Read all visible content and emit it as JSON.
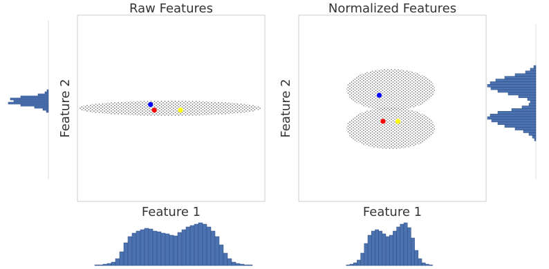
{
  "chart_data": [
    {
      "type": "scatter",
      "title": "Raw Features",
      "xlabel": "Feature 1",
      "ylabel": "Feature 2",
      "points": [
        {
          "color": "#0000ff",
          "x": 0.39,
          "y": 0.52
        },
        {
          "color": "#ff0000",
          "x": 0.41,
          "y": 0.49
        },
        {
          "color": "#ffff00",
          "x": 0.55,
          "y": 0.49
        }
      ]
    },
    {
      "type": "scatter",
      "title": "Normalized Features",
      "xlabel": "Feature 1",
      "ylabel": "Feature 2",
      "points": [
        {
          "color": "#0000ff",
          "x": 0.43,
          "y": 0.57
        },
        {
          "color": "#ff0000",
          "x": 0.45,
          "y": 0.43
        },
        {
          "color": "#ffff00",
          "x": 0.53,
          "y": 0.43
        }
      ]
    },
    {
      "type": "histogram",
      "orientation": "vertical",
      "color": "#4c72b0",
      "values": [
        0,
        0,
        1,
        1,
        2,
        3,
        5,
        10,
        20,
        33,
        42,
        47,
        50,
        52,
        54,
        53,
        50,
        49,
        47,
        46,
        44,
        43,
        48,
        52,
        56,
        58,
        60,
        62,
        60,
        56,
        50,
        42,
        30,
        18,
        10,
        5,
        3,
        2,
        1,
        1,
        0,
        0
      ]
    },
    {
      "type": "histogram",
      "orientation": "vertical",
      "color": "#4c72b0",
      "values": [
        0,
        0,
        0,
        0,
        0,
        0,
        0,
        0,
        0,
        0,
        0,
        0,
        0,
        0,
        1,
        2,
        4,
        8,
        18,
        32,
        44,
        50,
        52,
        50,
        46,
        42,
        44,
        50,
        56,
        60,
        62,
        55,
        40,
        22,
        10,
        4,
        2,
        1,
        0,
        0,
        0,
        0
      ]
    },
    {
      "type": "histogram",
      "orientation": "horizontal",
      "color": "#4c72b0",
      "values": [
        2,
        5,
        15,
        40,
        55,
        50,
        58,
        40,
        20,
        8,
        3
      ]
    },
    {
      "type": "histogram",
      "orientation": "horizontal",
      "color": "#4c72b0",
      "values": [
        3,
        8,
        15,
        30,
        45,
        58,
        66,
        70,
        65,
        55,
        40,
        25,
        12,
        8,
        10,
        20,
        35,
        55,
        66,
        70,
        64,
        55,
        45,
        30,
        18,
        10,
        5,
        2
      ]
    }
  ]
}
